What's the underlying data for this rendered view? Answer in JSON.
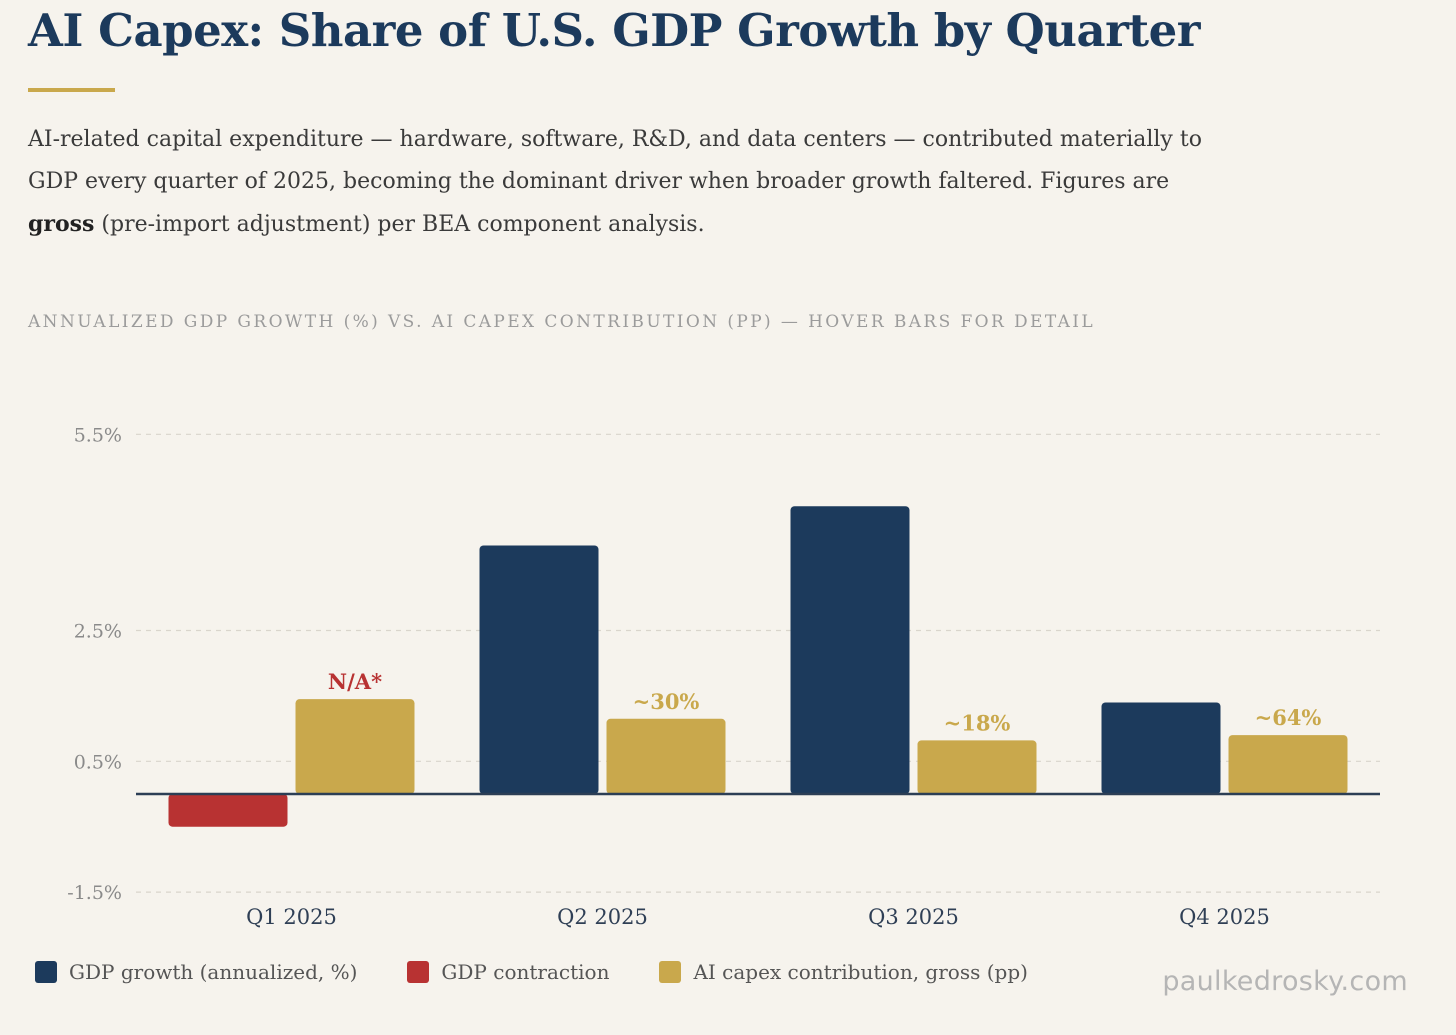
{
  "header": {
    "title": "AI Capex: Share of U.S. GDP Growth by Quarter",
    "intro_part1": "AI-related capital expenditure — hardware, software, R&D, and data centers — contributed materially to GDP every quarter of 2025, becoming the dominant driver when broader growth faltered. Figures are ",
    "intro_bold": "gross",
    "intro_part2": " (pre-import adjustment) per BEA component analysis."
  },
  "chart_label": "ANNUALIZED GDP GROWTH (%) VS. AI CAPEX CONTRIBUTION (PP) — HOVER BARS FOR DETAIL",
  "colors": {
    "gdp_growth": "#1c3a5c",
    "gdp_contraction": "#b83232",
    "ai_capex": "#c9a84c",
    "na_label": "#b83232"
  },
  "chart_data": {
    "type": "bar",
    "categories": [
      "Q1 2025",
      "Q2 2025",
      "Q3 2025",
      "Q4 2025"
    ],
    "series": [
      {
        "name": "GDP growth (annualized, %)",
        "values": [
          -0.5,
          3.8,
          4.4,
          1.4
        ]
      },
      {
        "name": "AI capex contribution, gross (pp)",
        "values": [
          1.45,
          1.15,
          0.82,
          0.9
        ]
      }
    ],
    "capex_share_labels": [
      "N/A*",
      "~30%",
      "~18%",
      "~64%"
    ],
    "y_ticks": [
      {
        "value": 5.5,
        "label": "5.5%"
      },
      {
        "value": 2.5,
        "label": "2.5%"
      },
      {
        "value": 0.5,
        "label": "0.5%"
      },
      {
        "value": -1.5,
        "label": "-1.5%"
      }
    ],
    "ylim": [
      -1.5,
      5.5
    ],
    "baseline": 0,
    "grid": true
  },
  "legend": [
    {
      "label": "GDP growth (annualized, %)"
    },
    {
      "label": "GDP contraction"
    },
    {
      "label": "AI capex contribution, gross (pp)"
    }
  ],
  "watermark": "paulkedrosky.com"
}
